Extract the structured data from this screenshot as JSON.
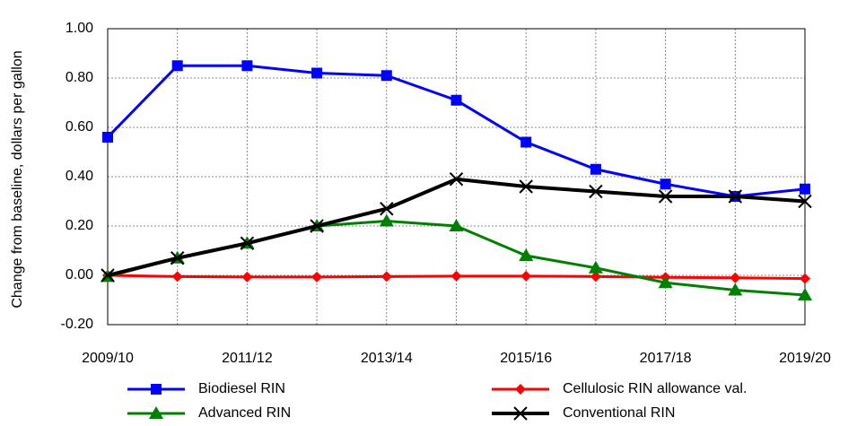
{
  "chart_data": {
    "type": "line",
    "y_label": "Change from baseline, dollars per gallon",
    "categories": [
      "2009/10",
      null,
      "2011/12",
      null,
      "2013/14",
      null,
      "2015/16",
      null,
      "2017/18",
      null,
      "2019/20"
    ],
    "series": [
      {
        "name": "Biodiesel RIN",
        "color": "#0000ff",
        "marker": "square",
        "width": 3,
        "values": [
          0.56,
          0.85,
          0.85,
          0.82,
          0.81,
          0.71,
          0.54,
          0.43,
          0.37,
          0.32,
          0.35
        ]
      },
      {
        "name": "Cellulosic RIN allowance val.",
        "color": "#ff0000",
        "marker": "diamond",
        "width": 3,
        "values": [
          0.0,
          -0.005,
          -0.007,
          -0.007,
          -0.005,
          -0.003,
          -0.003,
          -0.005,
          -0.008,
          -0.01,
          -0.013
        ]
      },
      {
        "name": "Advanced RIN",
        "color": "#008000",
        "marker": "triangle",
        "width": 3,
        "values": [
          -0.005,
          0.07,
          0.13,
          0.2,
          0.22,
          0.2,
          0.08,
          0.03,
          -0.03,
          -0.06,
          -0.08
        ]
      },
      {
        "name": "Conventional RIN",
        "color": "#000000",
        "marker": "x",
        "width": 4,
        "values": [
          0.0,
          0.07,
          0.13,
          0.2,
          0.27,
          0.39,
          0.36,
          0.34,
          0.32,
          0.32,
          0.3
        ]
      }
    ],
    "ylim": [
      -0.2,
      1.0
    ],
    "yticks": [
      {
        "value": -0.2,
        "label": "-0.20"
      },
      {
        "value": 0,
        "label": "0.00"
      },
      {
        "value": 0.2,
        "label": "0.20"
      },
      {
        "value": 0.4,
        "label": "0.40"
      },
      {
        "value": 0.6,
        "label": "0.60"
      },
      {
        "value": 0.8,
        "label": "0.80"
      },
      {
        "value": 1.0,
        "label": "1.00"
      }
    ],
    "grid": true
  }
}
